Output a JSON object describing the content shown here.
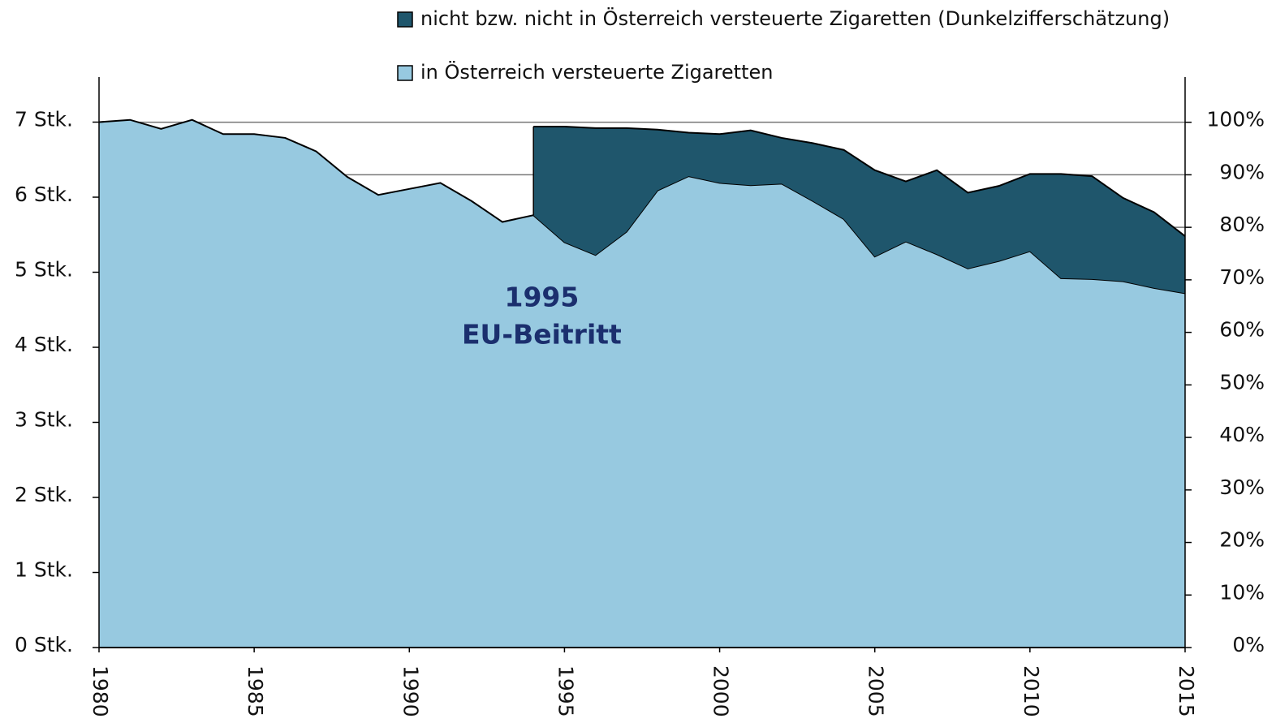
{
  "chart_data": {
    "type": "stacked-area",
    "x": [
      1980,
      1981,
      1982,
      1983,
      1984,
      1985,
      1986,
      1987,
      1988,
      1989,
      1990,
      1991,
      1992,
      1993,
      1994,
      1995,
      1996,
      1997,
      1998,
      1999,
      2000,
      2001,
      2002,
      2003,
      2004,
      2005,
      2006,
      2007,
      2008,
      2009,
      2010,
      2011,
      2012,
      2013,
      2014,
      2015
    ],
    "series": [
      {
        "name": "in Österreich versteuerte Zigaretten",
        "color": "#97c9e0",
        "values": [
          7.0,
          7.03,
          6.91,
          7.03,
          6.84,
          6.84,
          6.79,
          6.61,
          6.27,
          6.03,
          6.11,
          6.19,
          5.95,
          5.67,
          5.76,
          5.4,
          5.23,
          5.54,
          6.09,
          6.28,
          6.19,
          6.16,
          6.18,
          5.95,
          5.71,
          5.21,
          5.41,
          5.24,
          5.05,
          5.15,
          5.28,
          4.92,
          4.91,
          4.88,
          4.79,
          4.72
        ]
      },
      {
        "name": "nicht bzw. nicht in Österreich versteuerte Zigaretten (Dunkelzifferschätzung)",
        "color": "#1f566c",
        "values": [
          null,
          null,
          null,
          null,
          null,
          null,
          null,
          null,
          null,
          null,
          null,
          null,
          null,
          null,
          1.18,
          1.54,
          1.69,
          1.38,
          0.81,
          0.58,
          0.65,
          0.73,
          0.61,
          0.77,
          0.92,
          1.15,
          0.8,
          1.12,
          1.01,
          1.0,
          1.03,
          1.39,
          1.37,
          1.11,
          1.01,
          0.76
        ]
      }
    ],
    "xlim": [
      1980,
      2015
    ],
    "xticks": [
      1980,
      1985,
      1990,
      1995,
      2000,
      2005,
      2010,
      2015
    ],
    "ylim": [
      0,
      7.6
    ],
    "yticks": [
      {
        "value": 0,
        "label": "0 Stk."
      },
      {
        "value": 1,
        "label": "1 Stk."
      },
      {
        "value": 2,
        "label": "2 Stk."
      },
      {
        "value": 3,
        "label": "3 Stk."
      },
      {
        "value": 4,
        "label": "4 Stk."
      },
      {
        "value": 5,
        "label": "5 Stk."
      },
      {
        "value": 6,
        "label": "6 Stk."
      },
      {
        "value": 7,
        "label": "7 Stk."
      }
    ],
    "y2lim": [
      0,
      108.6
    ],
    "y2ticks": [
      {
        "value": 0,
        "label": "0%"
      },
      {
        "value": 10,
        "label": "10%"
      },
      {
        "value": 20,
        "label": "20%"
      },
      {
        "value": 30,
        "label": "30%"
      },
      {
        "value": 40,
        "label": "40%"
      },
      {
        "value": 50,
        "label": "50%"
      },
      {
        "value": 60,
        "label": "60%"
      },
      {
        "value": 70,
        "label": "70%"
      },
      {
        "value": 80,
        "label": "80%"
      },
      {
        "value": 90,
        "label": "90%"
      },
      {
        "value": 100,
        "label": "100%"
      }
    ],
    "grid": true,
    "annotation": {
      "x": 1995,
      "lines": [
        "1995",
        "EU-Beitritt"
      ],
      "color": "#1b2f6e"
    }
  }
}
